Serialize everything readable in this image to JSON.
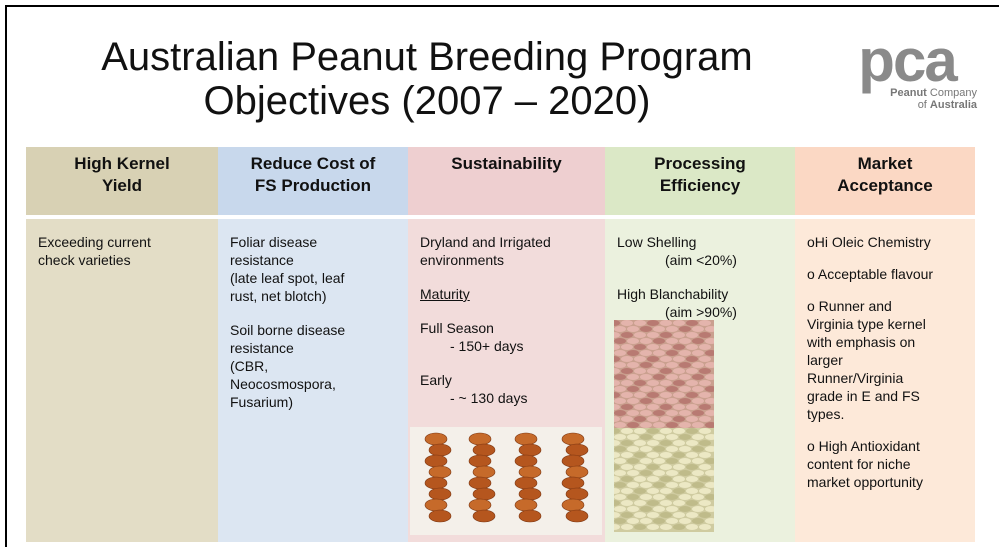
{
  "header": {
    "title": [
      "Australian Peanut Breeding Program",
      "Objectives (2007 – 2020)"
    ],
    "logo": {
      "mark": "pca",
      "line1": [
        "Peanut",
        " Company"
      ],
      "line2": [
        "of ",
        "Australia"
      ]
    }
  },
  "columns": [
    {
      "heading": [
        "High Kernel",
        "Yield"
      ],
      "body": [
        [
          "Exceeding current",
          "check varieties"
        ]
      ]
    },
    {
      "heading": [
        "Reduce Cost of",
        "FS Production"
      ],
      "body": [
        [
          "Foliar disease",
          "resistance",
          "(late leaf spot, leaf",
          "rust, net blotch)"
        ],
        [
          "Soil borne disease",
          "resistance",
          "(CBR,",
          "Neocosmospora,",
          "Fusarium)"
        ]
      ]
    },
    {
      "heading": [
        "Sustainability"
      ],
      "body": [
        [
          "Dryland and Irrigated",
          "environments"
        ],
        [
          "Maturity"
        ],
        [
          "Full Season",
          "- 150+ days"
        ],
        [
          "Early",
          "- ~ 130 days"
        ]
      ]
    },
    {
      "heading": [
        "Processing",
        "Efficiency"
      ],
      "body": [
        [
          "Low Shelling",
          "(aim <20%)"
        ],
        [
          "High Blanchability",
          "(aim >90%)"
        ]
      ]
    },
    {
      "heading": [
        "Market",
        "Acceptance"
      ],
      "body": [
        [
          "oHi Oleic Chemistry"
        ],
        [
          "o Acceptable flavour"
        ],
        [
          "o Runner and",
          "Virginia type kernel",
          "with emphasis on",
          "larger",
          "Runner/Virginia",
          "grade in E and FS",
          "types."
        ],
        [
          "o High Antioxidant",
          "content for niche",
          "market opportunity"
        ]
      ]
    }
  ]
}
